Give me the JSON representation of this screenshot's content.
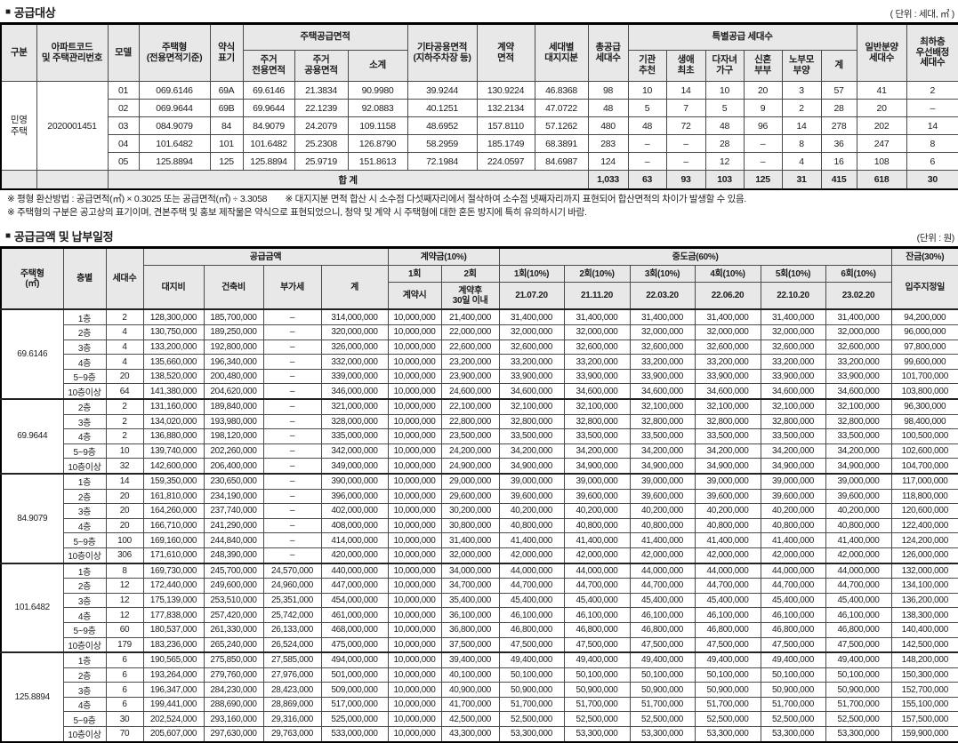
{
  "bullet": "■",
  "supply_section": {
    "title": "공급대상",
    "unit_note": "( 단위 : 세대, ㎡ )",
    "headers": {
      "gubun": "구분",
      "apt_code": "아파트코드\n및 주택관리번호",
      "model": "모델",
      "house_type": "주택형\n(전용면적기준)",
      "short_mark": "약식\n표기",
      "supply_area_group": "주택공급면적",
      "private_area": "주거\n전용면적",
      "common_area": "주거\n공용면적",
      "subtotal": "소계",
      "other_area": "기타공용면적\n(지하주차장 등)",
      "contract_area": "계약\n면적",
      "land_share": "세대별\n대지지분",
      "total_households": "총공급\n세대수",
      "special_group": "특별공급 세대수",
      "institution": "기관\n추천",
      "first_life": "생애\n최초",
      "multi_child": "다자녀\n가구",
      "newlyweds": "신혼\n부부",
      "elderly": "노부모\n부양",
      "special_total": "계",
      "general_households": "일반분양\n세대수",
      "lowest_floor": "최하층\n우선배정\n세대수"
    },
    "category": "민영\n주택",
    "apt_code_value": "2020001451",
    "rows": [
      [
        "01",
        "069.6146",
        "69A",
        "69.6146",
        "21.3834",
        "90.9980",
        "39.9244",
        "130.9224",
        "46.8368",
        "98",
        "10",
        "14",
        "10",
        "20",
        "3",
        "57",
        "41",
        "2"
      ],
      [
        "02",
        "069.9644",
        "69B",
        "69.9644",
        "22.1239",
        "92.0883",
        "40.1251",
        "132.2134",
        "47.0722",
        "48",
        "5",
        "7",
        "5",
        "9",
        "2",
        "28",
        "20",
        "–"
      ],
      [
        "03",
        "084.9079",
        "84",
        "84.9079",
        "24.2079",
        "109.1158",
        "48.6952",
        "157.8110",
        "57.1262",
        "480",
        "48",
        "72",
        "48",
        "96",
        "14",
        "278",
        "202",
        "14"
      ],
      [
        "04",
        "101.6482",
        "101",
        "101.6482",
        "25.2308",
        "126.8790",
        "58.2959",
        "185.1749",
        "68.3891",
        "283",
        "–",
        "–",
        "28",
        "–",
        "8",
        "36",
        "247",
        "8"
      ],
      [
        "05",
        "125.8894",
        "125",
        "125.8894",
        "25.9719",
        "151.8613",
        "72.1984",
        "224.0597",
        "84.6987",
        "124",
        "–",
        "–",
        "12",
        "–",
        "4",
        "16",
        "108",
        "6"
      ]
    ],
    "total_row": {
      "label": "합 계",
      "values": [
        "1,033",
        "63",
        "93",
        "103",
        "125",
        "31",
        "415",
        "618",
        "30"
      ]
    }
  },
  "notes": [
    "※ 평형 환산방법 : 공급면적(㎡) × 0.3025 또는 공급면적(㎡) ÷ 3.3058　　※ 대지지분 면적 합산 시 소수점 다섯째자리에서 절삭하여 소수점 넷째자리까지 표현되어 합산면적의 차이가 발생할 수 있음.",
    "※ 주택형의 구분은 공고상의 표기이며, 견본주택 및 홍보 제작물은 약식으로 표현되었으니, 청약 및 계약 시 주택형에 대한 혼돈 방지에 특히 유의하시기 바람."
  ],
  "payment_section": {
    "title": "공급금액 및 납부일정",
    "unit_note": "(단위 : 원)",
    "headers": {
      "house_type": "주택형\n(㎡)",
      "floor": "층별",
      "households": "세대수",
      "supply_amount": "공급금액",
      "land_cost": "대지비",
      "build_cost": "건축비",
      "vat": "부가세",
      "total": "계",
      "down_payment": "계약금(10%)",
      "down1": "1회",
      "down2": "2회",
      "down1_when": "계약시",
      "down2_when": "계약후\n30일 이내",
      "interim": "중도금(60%)",
      "interim_cols": [
        "1회(10%)",
        "2회(10%)",
        "3회(10%)",
        "4회(10%)",
        "5회(10%)",
        "6회(10%)"
      ],
      "interim_dates": [
        "21.07.20",
        "21.11.20",
        "22.03.20",
        "22.06.20",
        "22.10.20",
        "23.02.20"
      ],
      "balance": "잔금(30%)",
      "move_in": "입주지정일"
    },
    "groups": [
      {
        "type": "69.6146",
        "rows": [
          [
            "1층",
            "2",
            "128,300,000",
            "185,700,000",
            "–",
            "314,000,000",
            "10,000,000",
            "21,400,000",
            "31,400,000",
            "31,400,000",
            "31,400,000",
            "31,400,000",
            "31,400,000",
            "31,400,000",
            "94,200,000"
          ],
          [
            "2층",
            "4",
            "130,750,000",
            "189,250,000",
            "–",
            "320,000,000",
            "10,000,000",
            "22,000,000",
            "32,000,000",
            "32,000,000",
            "32,000,000",
            "32,000,000",
            "32,000,000",
            "32,000,000",
            "96,000,000"
          ],
          [
            "3층",
            "4",
            "133,200,000",
            "192,800,000",
            "–",
            "326,000,000",
            "10,000,000",
            "22,600,000",
            "32,600,000",
            "32,600,000",
            "32,600,000",
            "32,600,000",
            "32,600,000",
            "32,600,000",
            "97,800,000"
          ],
          [
            "4층",
            "4",
            "135,660,000",
            "196,340,000",
            "–",
            "332,000,000",
            "10,000,000",
            "23,200,000",
            "33,200,000",
            "33,200,000",
            "33,200,000",
            "33,200,000",
            "33,200,000",
            "33,200,000",
            "99,600,000"
          ],
          [
            "5~9층",
            "20",
            "138,520,000",
            "200,480,000",
            "–",
            "339,000,000",
            "10,000,000",
            "23,900,000",
            "33,900,000",
            "33,900,000",
            "33,900,000",
            "33,900,000",
            "33,900,000",
            "33,900,000",
            "101,700,000"
          ],
          [
            "10층이상",
            "64",
            "141,380,000",
            "204,620,000",
            "–",
            "346,000,000",
            "10,000,000",
            "24,600,000",
            "34,600,000",
            "34,600,000",
            "34,600,000",
            "34,600,000",
            "34,600,000",
            "34,600,000",
            "103,800,000"
          ]
        ]
      },
      {
        "type": "69.9644",
        "rows": [
          [
            "2층",
            "2",
            "131,160,000",
            "189,840,000",
            "–",
            "321,000,000",
            "10,000,000",
            "22,100,000",
            "32,100,000",
            "32,100,000",
            "32,100,000",
            "32,100,000",
            "32,100,000",
            "32,100,000",
            "96,300,000"
          ],
          [
            "3층",
            "2",
            "134,020,000",
            "193,980,000",
            "–",
            "328,000,000",
            "10,000,000",
            "22,800,000",
            "32,800,000",
            "32,800,000",
            "32,800,000",
            "32,800,000",
            "32,800,000",
            "32,800,000",
            "98,400,000"
          ],
          [
            "4층",
            "2",
            "136,880,000",
            "198,120,000",
            "–",
            "335,000,000",
            "10,000,000",
            "23,500,000",
            "33,500,000",
            "33,500,000",
            "33,500,000",
            "33,500,000",
            "33,500,000",
            "33,500,000",
            "100,500,000"
          ],
          [
            "5~9층",
            "10",
            "139,740,000",
            "202,260,000",
            "–",
            "342,000,000",
            "10,000,000",
            "24,200,000",
            "34,200,000",
            "34,200,000",
            "34,200,000",
            "34,200,000",
            "34,200,000",
            "34,200,000",
            "102,600,000"
          ],
          [
            "10층이상",
            "32",
            "142,600,000",
            "206,400,000",
            "–",
            "349,000,000",
            "10,000,000",
            "24,900,000",
            "34,900,000",
            "34,900,000",
            "34,900,000",
            "34,900,000",
            "34,900,000",
            "34,900,000",
            "104,700,000"
          ]
        ]
      },
      {
        "type": "84.9079",
        "rows": [
          [
            "1층",
            "14",
            "159,350,000",
            "230,650,000",
            "–",
            "390,000,000",
            "10,000,000",
            "29,000,000",
            "39,000,000",
            "39,000,000",
            "39,000,000",
            "39,000,000",
            "39,000,000",
            "39,000,000",
            "117,000,000"
          ],
          [
            "2층",
            "20",
            "161,810,000",
            "234,190,000",
            "–",
            "396,000,000",
            "10,000,000",
            "29,600,000",
            "39,600,000",
            "39,600,000",
            "39,600,000",
            "39,600,000",
            "39,600,000",
            "39,600,000",
            "118,800,000"
          ],
          [
            "3층",
            "20",
            "164,260,000",
            "237,740,000",
            "–",
            "402,000,000",
            "10,000,000",
            "30,200,000",
            "40,200,000",
            "40,200,000",
            "40,200,000",
            "40,200,000",
            "40,200,000",
            "40,200,000",
            "120,600,000"
          ],
          [
            "4층",
            "20",
            "166,710,000",
            "241,290,000",
            "–",
            "408,000,000",
            "10,000,000",
            "30,800,000",
            "40,800,000",
            "40,800,000",
            "40,800,000",
            "40,800,000",
            "40,800,000",
            "40,800,000",
            "122,400,000"
          ],
          [
            "5~9층",
            "100",
            "169,160,000",
            "244,840,000",
            "–",
            "414,000,000",
            "10,000,000",
            "31,400,000",
            "41,400,000",
            "41,400,000",
            "41,400,000",
            "41,400,000",
            "41,400,000",
            "41,400,000",
            "124,200,000"
          ],
          [
            "10층이상",
            "306",
            "171,610,000",
            "248,390,000",
            "–",
            "420,000,000",
            "10,000,000",
            "32,000,000",
            "42,000,000",
            "42,000,000",
            "42,000,000",
            "42,000,000",
            "42,000,000",
            "42,000,000",
            "126,000,000"
          ]
        ]
      },
      {
        "type": "101.6482",
        "rows": [
          [
            "1층",
            "8",
            "169,730,000",
            "245,700,000",
            "24,570,000",
            "440,000,000",
            "10,000,000",
            "34,000,000",
            "44,000,000",
            "44,000,000",
            "44,000,000",
            "44,000,000",
            "44,000,000",
            "44,000,000",
            "132,000,000"
          ],
          [
            "2층",
            "12",
            "172,440,000",
            "249,600,000",
            "24,960,000",
            "447,000,000",
            "10,000,000",
            "34,700,000",
            "44,700,000",
            "44,700,000",
            "44,700,000",
            "44,700,000",
            "44,700,000",
            "44,700,000",
            "134,100,000"
          ],
          [
            "3층",
            "12",
            "175,139,000",
            "253,510,000",
            "25,351,000",
            "454,000,000",
            "10,000,000",
            "35,400,000",
            "45,400,000",
            "45,400,000",
            "45,400,000",
            "45,400,000",
            "45,400,000",
            "45,400,000",
            "136,200,000"
          ],
          [
            "4층",
            "12",
            "177,838,000",
            "257,420,000",
            "25,742,000",
            "461,000,000",
            "10,000,000",
            "36,100,000",
            "46,100,000",
            "46,100,000",
            "46,100,000",
            "46,100,000",
            "46,100,000",
            "46,100,000",
            "138,300,000"
          ],
          [
            "5~9층",
            "60",
            "180,537,000",
            "261,330,000",
            "26,133,000",
            "468,000,000",
            "10,000,000",
            "36,800,000",
            "46,800,000",
            "46,800,000",
            "46,800,000",
            "46,800,000",
            "46,800,000",
            "46,800,000",
            "140,400,000"
          ],
          [
            "10층이상",
            "179",
            "183,236,000",
            "265,240,000",
            "26,524,000",
            "475,000,000",
            "10,000,000",
            "37,500,000",
            "47,500,000",
            "47,500,000",
            "47,500,000",
            "47,500,000",
            "47,500,000",
            "47,500,000",
            "142,500,000"
          ]
        ]
      },
      {
        "type": "125.8894",
        "rows": [
          [
            "1층",
            "6",
            "190,565,000",
            "275,850,000",
            "27,585,000",
            "494,000,000",
            "10,000,000",
            "39,400,000",
            "49,400,000",
            "49,400,000",
            "49,400,000",
            "49,400,000",
            "49,400,000",
            "49,400,000",
            "148,200,000"
          ],
          [
            "2층",
            "6",
            "193,264,000",
            "279,760,000",
            "27,976,000",
            "501,000,000",
            "10,000,000",
            "40,100,000",
            "50,100,000",
            "50,100,000",
            "50,100,000",
            "50,100,000",
            "50,100,000",
            "50,100,000",
            "150,300,000"
          ],
          [
            "3층",
            "6",
            "196,347,000",
            "284,230,000",
            "28,423,000",
            "509,000,000",
            "10,000,000",
            "40,900,000",
            "50,900,000",
            "50,900,000",
            "50,900,000",
            "50,900,000",
            "50,900,000",
            "50,900,000",
            "152,700,000"
          ],
          [
            "4층",
            "6",
            "199,441,000",
            "288,690,000",
            "28,869,000",
            "517,000,000",
            "10,000,000",
            "41,700,000",
            "51,700,000",
            "51,700,000",
            "51,700,000",
            "51,700,000",
            "51,700,000",
            "51,700,000",
            "155,100,000"
          ],
          [
            "5~9층",
            "30",
            "202,524,000",
            "293,160,000",
            "29,316,000",
            "525,000,000",
            "10,000,000",
            "42,500,000",
            "52,500,000",
            "52,500,000",
            "52,500,000",
            "52,500,000",
            "52,500,000",
            "52,500,000",
            "157,500,000"
          ],
          [
            "10층이상",
            "70",
            "205,607,000",
            "297,630,000",
            "29,763,000",
            "533,000,000",
            "10,000,000",
            "43,300,000",
            "53,300,000",
            "53,300,000",
            "53,300,000",
            "53,300,000",
            "53,300,000",
            "53,300,000",
            "159,900,000"
          ]
        ]
      }
    ]
  }
}
